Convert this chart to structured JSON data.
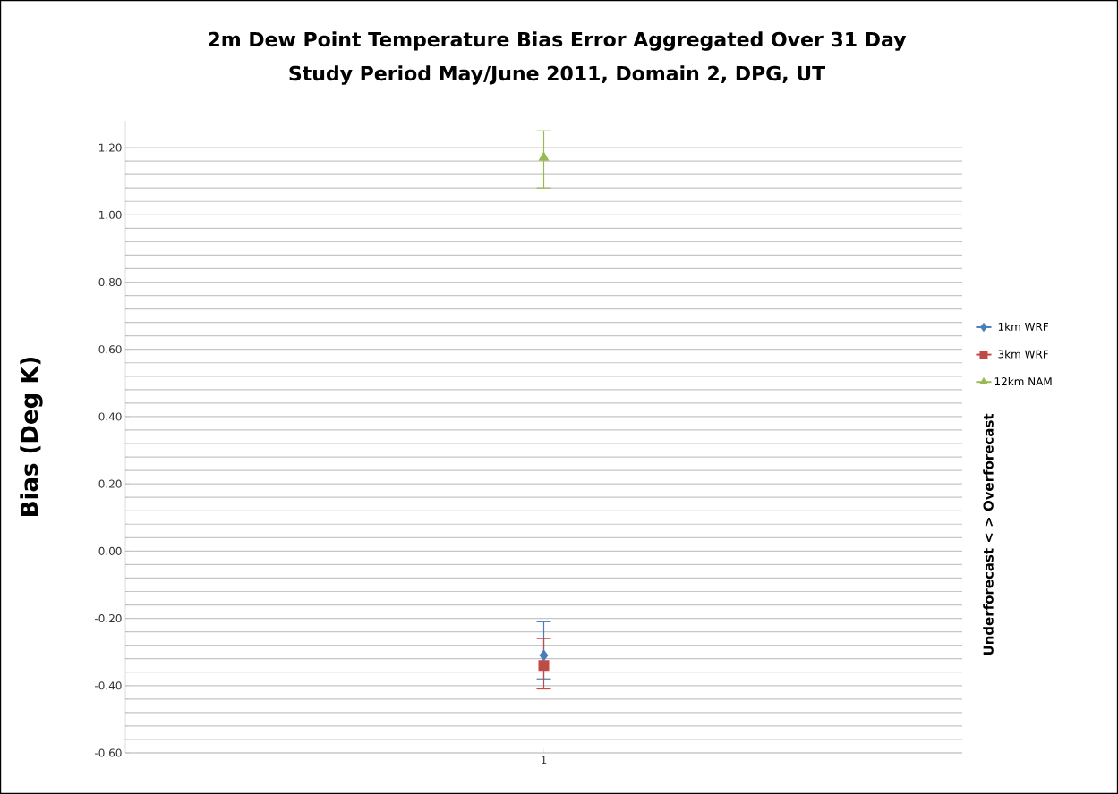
{
  "chart_data": {
    "type": "scatter",
    "title": "2m Dew Point Temperature Bias Error Aggregated Over 31 Day",
    "subtitle": "Study Period May/June 2011, Domain 2, DPG, UT",
    "ylabel": "Bias (Deg K)",
    "annotations": [
      "Underforecast < > Overforecast"
    ],
    "categories": [
      "1"
    ],
    "series": [
      {
        "name": "1km WRF",
        "color": "#4a7ebb",
        "marker": "diamond",
        "values": [
          -0.31
        ],
        "errors": [
          [
            -0.38,
            -0.21
          ]
        ]
      },
      {
        "name": "3km WRF",
        "color": "#be4b48",
        "marker": "square",
        "values": [
          -0.34
        ],
        "errors": [
          [
            -0.41,
            -0.26
          ]
        ]
      },
      {
        "name": "12km NAM",
        "color": "#98b954",
        "marker": "triangle",
        "values": [
          1.17
        ],
        "errors": [
          [
            1.08,
            1.25
          ]
        ]
      }
    ],
    "ylim": [
      -0.6,
      1.28
    ],
    "yticks": [
      {
        "value": -0.6,
        "label": "-0.60"
      },
      {
        "value": -0.4,
        "label": "-0.40"
      },
      {
        "value": -0.2,
        "label": "-0.20"
      },
      {
        "value": 0,
        "label": "0.00"
      },
      {
        "value": 0.2,
        "label": "0.20"
      },
      {
        "value": 0.4,
        "label": "0.40"
      },
      {
        "value": 0.6,
        "label": "0.60"
      },
      {
        "value": 0.8,
        "label": "0.80"
      },
      {
        "value": 1.0,
        "label": "1.00"
      },
      {
        "value": 1.2,
        "label": "1.20"
      }
    ],
    "grid": true,
    "legend": "right"
  }
}
